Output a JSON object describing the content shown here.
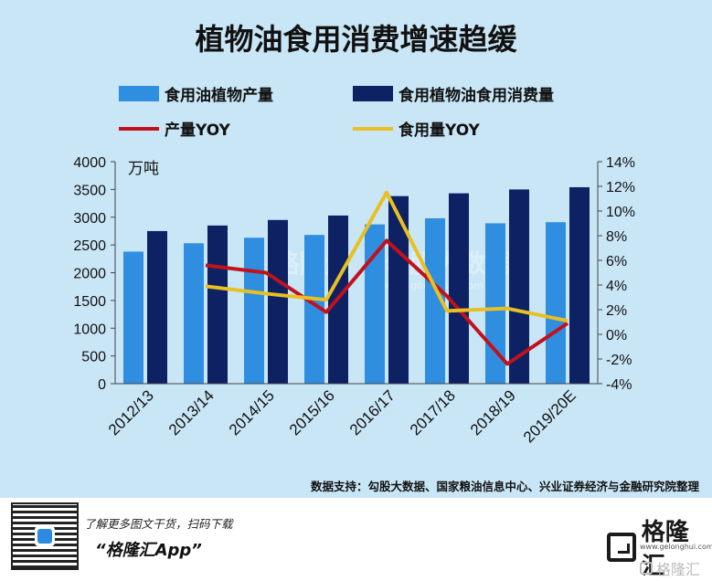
{
  "chart_data": {
    "type": "bar",
    "title": "植物油食用消费增速趋缓",
    "unit_label": "万吨",
    "categories": [
      "2012/13",
      "2013/14",
      "2014/15",
      "2015/16",
      "2016/17",
      "2017/18",
      "2018/19",
      "2019/20E"
    ],
    "series": [
      {
        "name": "食用油植物产量",
        "kind": "bar",
        "axis": "left",
        "color": "#2f8ee0",
        "values": [
          2380,
          2530,
          2630,
          2680,
          2870,
          2980,
          2890,
          2910
        ]
      },
      {
        "name": "食用植物油食用消费量",
        "kind": "bar",
        "axis": "left",
        "color": "#0d2163",
        "values": [
          2750,
          2850,
          2950,
          3030,
          3380,
          3430,
          3500,
          3540
        ]
      },
      {
        "name": "产量YOY",
        "kind": "line",
        "axis": "right",
        "color": "#c1121c",
        "values": [
          null,
          5.6,
          5.0,
          1.8,
          7.6,
          3.1,
          -2.4,
          0.9
        ]
      },
      {
        "name": "食用量YOY",
        "kind": "line",
        "axis": "right",
        "color": "#e8c021",
        "values": [
          null,
          3.9,
          3.3,
          2.8,
          11.5,
          1.9,
          2.1,
          1.1
        ]
      }
    ],
    "y_left": {
      "min": 0,
      "max": 4000,
      "ticks": [
        "0",
        "500",
        "1000",
        "1500",
        "2000",
        "2500",
        "3000",
        "3500",
        "4000"
      ]
    },
    "y_right": {
      "min": -4,
      "max": 14,
      "ticks": [
        "-4%",
        "-2%",
        "0%",
        "2%",
        "4%",
        "6%",
        "8%",
        "10%",
        "12%",
        "14%"
      ]
    },
    "grid": false,
    "legend_placement": "top"
  },
  "source": "数据支持：勾股大数据、国家粮油信息中心、兴业证券经济与金融研究院整理",
  "watermark": {
    "text": "格隆汇",
    "text2": "勾股大数据",
    "url": "www.gogudata.com"
  },
  "footer": {
    "tagline": "了解更多图文干货，扫码下载",
    "app_name": "“格隆汇App”",
    "logo_text": "格隆汇",
    "logo_url": "www.gelonghui.com",
    "watermark_text": "格隆汇"
  }
}
